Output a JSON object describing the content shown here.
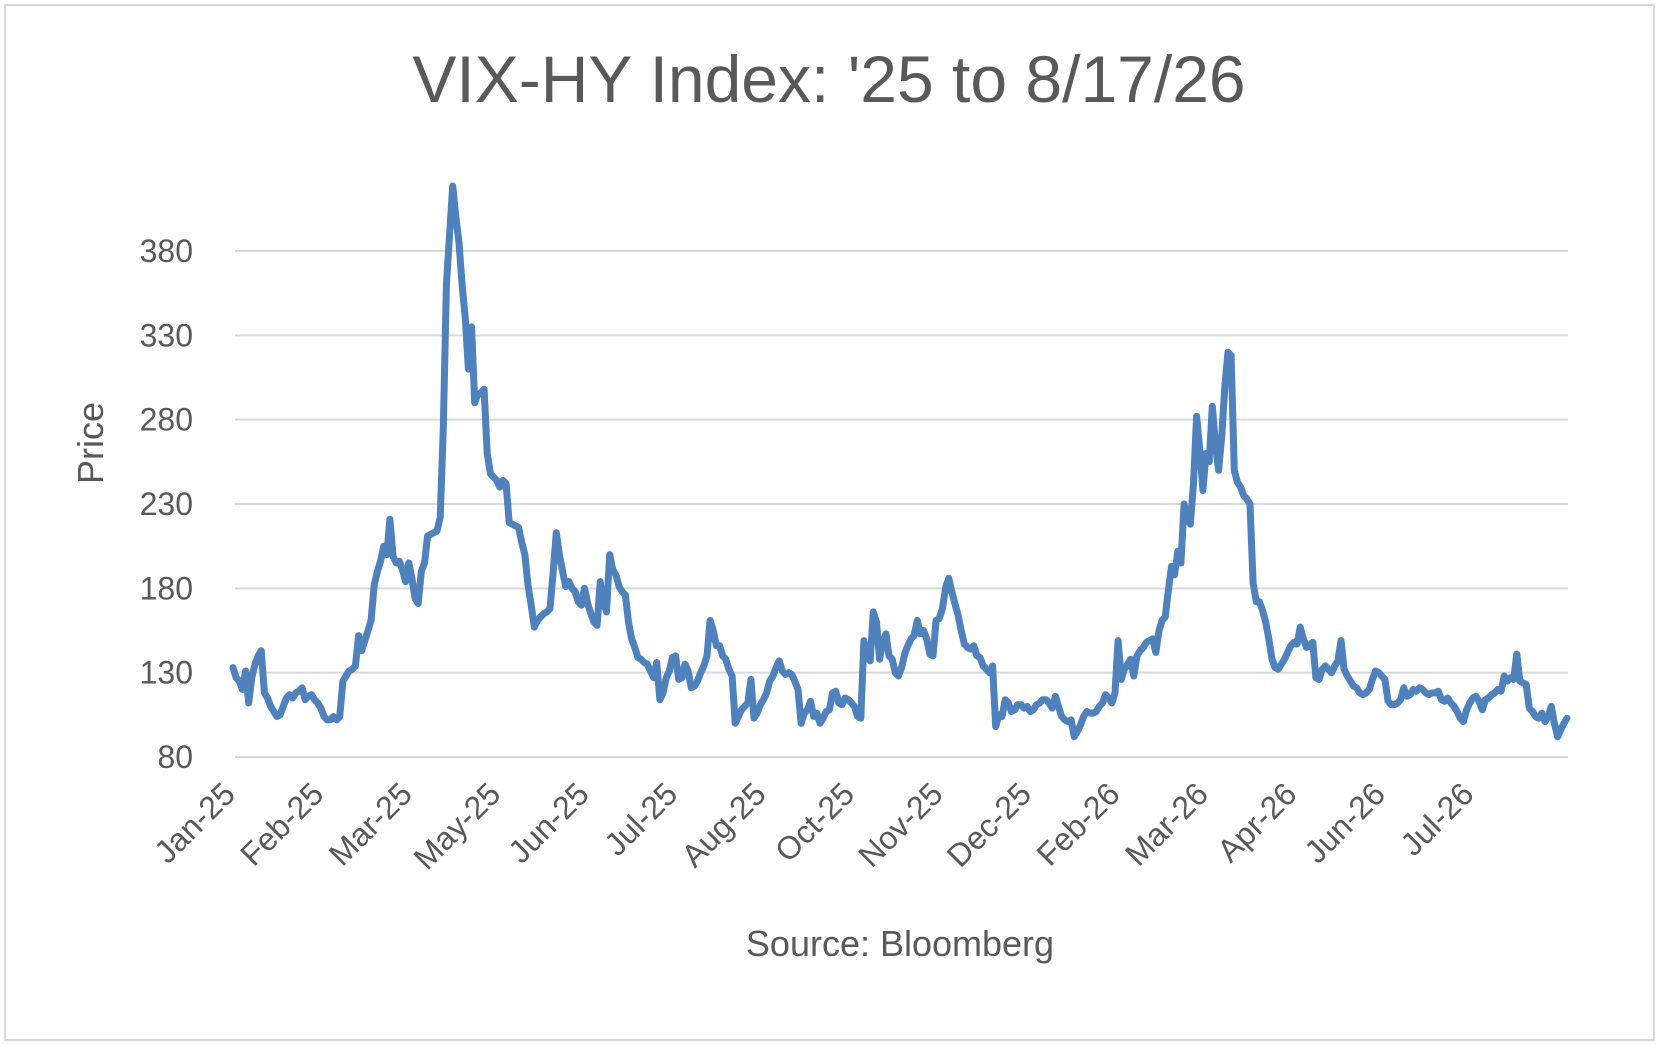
{
  "chart_data": {
    "type": "line",
    "title": "VIX-HY Index: '25 to 8/17/26",
    "ylabel": "Price",
    "xlabel": "Source: Bloomberg",
    "ylim": [
      80,
      423
    ],
    "y_ticks": [
      80,
      130,
      180,
      230,
      280,
      330,
      380
    ],
    "x_tick_labels": [
      "Jan-25",
      "Feb-25",
      "Mar-25",
      "May-25",
      "Jun-25",
      "Jul-25",
      "Aug-25",
      "Oct-25",
      "Nov-25",
      "Dec-25",
      "Feb-26",
      "Mar-26",
      "Apr-26",
      "Jun-26",
      "Jul-26"
    ],
    "grid": "horizontal",
    "legend": "none",
    "colors": {
      "series": "#4f81bd",
      "grid": "#d9d9d9",
      "text": "#595959"
    },
    "series": [
      {
        "values": [
          133,
          127,
          125,
          120,
          131,
          112,
          127,
          135,
          140,
          143,
          118,
          115,
          110,
          107,
          104,
          105,
          110,
          115,
          117,
          115,
          118,
          119,
          121,
          114,
          116,
          117,
          114,
          112,
          109,
          104,
          102,
          102,
          104,
          102,
          104,
          125,
          128,
          131,
          132,
          134,
          152,
          143,
          149,
          155,
          161,
          182,
          190,
          196,
          205,
          200,
          221,
          199,
          195,
          196,
          191,
          184,
          195,
          186,
          174,
          171,
          190,
          195,
          211,
          212,
          213,
          214,
          222,
          275,
          360,
          390,
          423,
          400,
          385,
          360,
          340,
          310,
          335,
          290,
          295,
          296,
          298,
          260,
          248,
          246,
          244,
          240,
          244,
          242,
          219,
          218,
          217,
          216,
          207,
          200,
          182,
          170,
          157,
          161,
          163,
          165,
          166,
          168,
          190,
          213,
          200,
          190,
          181,
          184,
          180,
          178,
          172,
          170,
          180,
          171,
          165,
          160,
          158,
          184,
          172,
          166,
          200,
          191,
          188,
          181,
          178,
          176,
          160,
          150,
          145,
          139,
          138,
          136,
          135,
          131,
          127,
          136,
          114,
          118,
          127,
          131,
          139,
          140,
          126,
          127,
          135,
          131,
          121,
          122,
          125,
          130,
          134,
          140,
          161,
          155,
          146,
          146,
          140,
          138,
          132,
          128,
          100,
          104,
          108,
          110,
          112,
          126,
          103,
          106,
          111,
          114,
          118,
          125,
          128,
          133,
          137,
          131,
          129,
          130,
          129,
          125,
          120,
          100,
          106,
          108,
          113,
          104,
          106,
          100,
          103,
          107,
          108,
          118,
          119,
          112,
          111,
          115,
          114,
          112,
          110,
          104,
          103,
          149,
          140,
          137,
          166,
          160,
          138,
          148,
          153,
          140,
          138,
          130,
          128,
          133,
          141,
          146,
          150,
          152,
          161,
          153,
          155,
          150,
          141,
          140,
          161,
          162,
          168,
          180,
          186,
          178,
          171,
          164,
          155,
          147,
          145,
          144,
          146,
          140,
          139,
          134,
          132,
          130,
          134,
          98,
          105,
          104,
          114,
          112,
          107,
          108,
          111,
          111,
          109,
          110,
          107,
          108,
          111,
          112,
          114,
          114,
          112,
          109,
          116,
          110,
          104,
          102,
          101,
          102,
          92,
          95,
          99,
          104,
          107,
          106,
          106,
          107,
          110,
          112,
          117,
          115,
          112,
          118,
          149,
          126,
          132,
          135,
          138,
          128,
          140,
          143,
          145,
          148,
          149,
          150,
          142,
          155,
          161,
          163,
          179,
          193,
          188,
          202,
          195,
          230,
          222,
          218,
          242,
          282,
          262,
          238,
          260,
          255,
          288,
          265,
          250,
          270,
          300,
          320,
          318,
          250,
          243,
          240,
          235,
          233,
          230,
          183,
          172,
          172,
          167,
          160,
          150,
          138,
          133,
          132,
          135,
          138,
          142,
          146,
          148,
          147,
          157,
          150,
          145,
          146,
          148,
          127,
          126,
          132,
          134,
          132,
          130,
          134,
          137,
          149,
          132,
          128,
          125,
          122,
          121,
          118,
          117,
          118,
          120,
          126,
          131,
          130,
          128,
          126,
          113,
          111,
          111,
          112,
          114,
          121,
          116,
          117,
          120,
          119,
          121,
          120,
          118,
          117,
          118,
          118,
          119,
          114,
          113,
          115,
          112,
          110,
          107,
          103,
          101,
          108,
          112,
          115,
          116,
          113,
          108,
          114,
          115,
          117,
          118,
          120,
          119,
          128,
          125,
          127,
          126,
          141,
          125,
          124,
          123,
          109,
          107,
          104,
          103,
          106,
          101,
          104,
          110,
          100,
          92,
          96,
          100,
          103
        ]
      }
    ]
  }
}
